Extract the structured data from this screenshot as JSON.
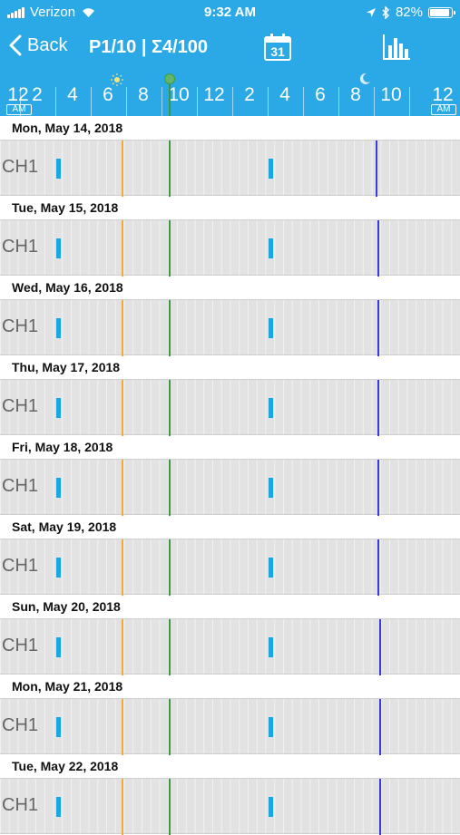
{
  "status_bar": {
    "carrier": "Verizon",
    "time": "9:32 AM",
    "battery": "82%",
    "icons": [
      "signal-icon",
      "wifi-icon",
      "location-icon",
      "bluetooth-icon",
      "battery-icon"
    ]
  },
  "nav": {
    "back_label": "Back",
    "title": "P1/10 | Σ4/100",
    "calendar_day": "31",
    "icons": [
      "chevron-left-icon",
      "calendar-icon",
      "bar-chart-icon"
    ]
  },
  "timeline": {
    "hour_labels": [
      "12",
      "2",
      "4",
      "6",
      "8",
      "10",
      "12",
      "2",
      "4",
      "6",
      "8",
      "10",
      "12"
    ],
    "start_sub_label": "AM",
    "end_sub_label": "AM",
    "sunrise_hour": 6.5,
    "now_hour": 9.5,
    "sunset_hour": 20.5
  },
  "channel_label": "CH1",
  "days": [
    {
      "date": "Mon, May 14, 2018",
      "events": [
        3.2,
        15.2
      ],
      "sunrise_hour": 6.8,
      "sunset_hour": 21.2
    },
    {
      "date": "Tue, May 15, 2018",
      "events": [
        3.2,
        15.2
      ],
      "sunrise_hour": 6.8,
      "sunset_hour": 21.3
    },
    {
      "date": "Wed, May 16, 2018",
      "events": [
        3.2,
        15.2
      ],
      "sunrise_hour": 6.8,
      "sunset_hour": 21.3
    },
    {
      "date": "Thu, May 17, 2018",
      "events": [
        3.2,
        15.2
      ],
      "sunrise_hour": 6.8,
      "sunset_hour": 21.3
    },
    {
      "date": "Fri, May 18, 2018",
      "events": [
        3.2,
        15.2
      ],
      "sunrise_hour": 6.8,
      "sunset_hour": 21.3
    },
    {
      "date": "Sat, May 19, 2018",
      "events": [
        3.2,
        15.2
      ],
      "sunrise_hour": 6.8,
      "sunset_hour": 21.3
    },
    {
      "date": "Sun, May 20, 2018",
      "events": [
        3.2,
        15.2
      ],
      "sunrise_hour": 6.8,
      "sunset_hour": 21.4
    },
    {
      "date": "Mon, May 21, 2018",
      "events": [
        3.2,
        15.2
      ],
      "sunrise_hour": 6.8,
      "sunset_hour": 21.4
    },
    {
      "date": "Tue, May 22, 2018",
      "events": [
        3.2,
        15.2
      ],
      "sunrise_hour": 6.8,
      "sunset_hour": 21.4
    }
  ],
  "colors": {
    "header_bg": "#2aa9e6",
    "event": "#1aa6e0",
    "sunrise_line": "#f4a836",
    "now_line": "#3c9a3c",
    "sunset_line": "#3b3bdb"
  }
}
